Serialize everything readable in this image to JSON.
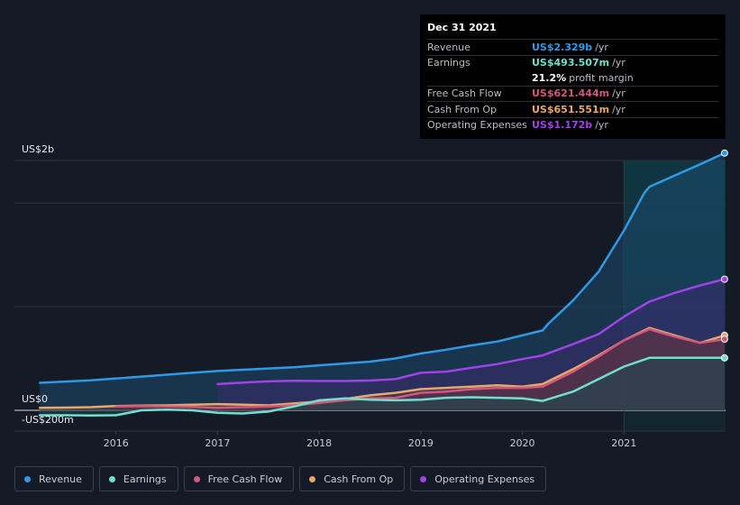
{
  "chart_data": {
    "type": "area",
    "y_axis": {
      "top_label": "US$2b",
      "zero_label": "US$0",
      "bottom_label": "-US$200m",
      "ylim": [
        -200,
        2000
      ]
    },
    "x_ticks": [
      {
        "label": "2016",
        "x": 2016.0
      },
      {
        "label": "2017",
        "x": 2017.0
      },
      {
        "label": "2018",
        "x": 2018.0
      },
      {
        "label": "2019",
        "x": 2019.0
      },
      {
        "label": "2020",
        "x": 2020.0
      },
      {
        "label": "2021",
        "x": 2021.0
      }
    ],
    "xlim": [
      2015.0,
      2022.0
    ],
    "highlight_from": 2021.0,
    "legend_position": "bottom-left",
    "series": [
      {
        "name": "Revenue",
        "color": "#2e9ae6",
        "fill": "#1b4a6e",
        "points": [
          [
            2015.25,
            220
          ],
          [
            2015.5,
            230
          ],
          [
            2015.75,
            240
          ],
          [
            2016,
            255
          ],
          [
            2016.25,
            270
          ],
          [
            2016.5,
            285
          ],
          [
            2016.75,
            300
          ],
          [
            2017,
            315
          ],
          [
            2017.25,
            325
          ],
          [
            2017.5,
            335
          ],
          [
            2017.75,
            345
          ],
          [
            2018,
            360
          ],
          [
            2018.25,
            375
          ],
          [
            2018.5,
            390
          ],
          [
            2018.75,
            415
          ],
          [
            2019,
            455
          ],
          [
            2019.25,
            485
          ],
          [
            2019.5,
            520
          ],
          [
            2019.75,
            550
          ],
          [
            2020,
            600
          ],
          [
            2020.2,
            640
          ],
          [
            2020.25,
            690
          ],
          [
            2020.5,
            880
          ],
          [
            2020.75,
            1110
          ],
          [
            2021,
            1440
          ],
          [
            2021.2,
            1740
          ],
          [
            2021.25,
            1790
          ],
          [
            2021.5,
            1880
          ],
          [
            2021.75,
            1970
          ],
          [
            2021.99,
            2060
          ]
        ]
      },
      {
        "name": "Operating Expenses",
        "color": "#a042e8",
        "fill": "#3a2a6e",
        "points": [
          [
            2017,
            210
          ],
          [
            2017.25,
            222
          ],
          [
            2017.5,
            232
          ],
          [
            2017.75,
            236
          ],
          [
            2018,
            235
          ],
          [
            2018.25,
            235
          ],
          [
            2018.5,
            238
          ],
          [
            2018.75,
            250
          ],
          [
            2019,
            300
          ],
          [
            2019.25,
            310
          ],
          [
            2019.5,
            340
          ],
          [
            2019.75,
            370
          ],
          [
            2020,
            410
          ],
          [
            2020.2,
            440
          ],
          [
            2020.5,
            530
          ],
          [
            2020.75,
            610
          ],
          [
            2021,
            750
          ],
          [
            2021.25,
            870
          ],
          [
            2021.5,
            940
          ],
          [
            2021.75,
            1000
          ],
          [
            2021.99,
            1050
          ]
        ]
      },
      {
        "name": "Cash From Op",
        "color": "#e8a968",
        "fill": "#5a3e4a",
        "points": [
          [
            2015.25,
            20
          ],
          [
            2015.5,
            22
          ],
          [
            2015.75,
            25
          ],
          [
            2016,
            35
          ],
          [
            2016.25,
            38
          ],
          [
            2016.5,
            40
          ],
          [
            2016.75,
            45
          ],
          [
            2017,
            50
          ],
          [
            2017.25,
            45
          ],
          [
            2017.5,
            40
          ],
          [
            2017.75,
            55
          ],
          [
            2018,
            70
          ],
          [
            2018.25,
            90
          ],
          [
            2018.5,
            120
          ],
          [
            2018.75,
            140
          ],
          [
            2019,
            170
          ],
          [
            2019.25,
            180
          ],
          [
            2019.5,
            190
          ],
          [
            2019.75,
            200
          ],
          [
            2020,
            190
          ],
          [
            2020.2,
            210
          ],
          [
            2020.5,
            330
          ],
          [
            2020.75,
            440
          ],
          [
            2021,
            560
          ],
          [
            2021.25,
            660
          ],
          [
            2021.5,
            600
          ],
          [
            2021.75,
            540
          ],
          [
            2021.99,
            600
          ]
        ]
      },
      {
        "name": "Free Cash Flow",
        "color": "#d2577e",
        "fill": "#5a2e46",
        "points": [
          [
            2016,
            30
          ],
          [
            2016.25,
            33
          ],
          [
            2016.5,
            30
          ],
          [
            2016.75,
            28
          ],
          [
            2017,
            20
          ],
          [
            2017.25,
            25
          ],
          [
            2017.5,
            30
          ],
          [
            2017.75,
            40
          ],
          [
            2018,
            60
          ],
          [
            2018.25,
            80
          ],
          [
            2018.5,
            95
          ],
          [
            2018.75,
            100
          ],
          [
            2019,
            140
          ],
          [
            2019.25,
            150
          ],
          [
            2019.5,
            170
          ],
          [
            2019.75,
            180
          ],
          [
            2020,
            180
          ],
          [
            2020.2,
            190
          ],
          [
            2020.5,
            310
          ],
          [
            2020.75,
            430
          ],
          [
            2021,
            560
          ],
          [
            2021.25,
            650
          ],
          [
            2021.5,
            590
          ],
          [
            2021.75,
            540
          ],
          [
            2021.99,
            570
          ]
        ]
      },
      {
        "name": "Earnings",
        "color": "#6fe0cf",
        "fill": "#1d4a4e",
        "points": [
          [
            2015.25,
            -40
          ],
          [
            2015.5,
            -40
          ],
          [
            2015.75,
            -42
          ],
          [
            2016,
            -40
          ],
          [
            2016.25,
            0
          ],
          [
            2016.5,
            5
          ],
          [
            2016.75,
            0
          ],
          [
            2017,
            -20
          ],
          [
            2017.25,
            -25
          ],
          [
            2017.5,
            -10
          ],
          [
            2017.75,
            30
          ],
          [
            2018,
            80
          ],
          [
            2018.25,
            95
          ],
          [
            2018.5,
            85
          ],
          [
            2018.75,
            80
          ],
          [
            2019,
            85
          ],
          [
            2019.25,
            100
          ],
          [
            2019.5,
            105
          ],
          [
            2019.75,
            100
          ],
          [
            2020,
            95
          ],
          [
            2020.2,
            75
          ],
          [
            2020.5,
            150
          ],
          [
            2020.75,
            250
          ],
          [
            2021,
            350
          ],
          [
            2021.25,
            420
          ],
          [
            2021.5,
            420
          ],
          [
            2021.75,
            420
          ],
          [
            2021.99,
            420
          ]
        ]
      }
    ]
  },
  "tooltip": {
    "date": "Dec 31 2021",
    "rows": [
      {
        "label": "Revenue",
        "value": "US$2.329b",
        "unit": "/yr",
        "color": "#2e9ae6"
      },
      {
        "label": "Earnings",
        "value": "US$493.507m",
        "unit": "/yr",
        "color": "#6fe0cf"
      },
      {
        "label": "",
        "value": "21.2%",
        "unit": "profit margin",
        "color": "#ffffff"
      },
      {
        "label": "Free Cash Flow",
        "value": "US$621.444m",
        "unit": "/yr",
        "color": "#d2577e"
      },
      {
        "label": "Cash From Op",
        "value": "US$651.551m",
        "unit": "/yr",
        "color": "#e8a968"
      },
      {
        "label": "Operating Expenses",
        "value": "US$1.172b",
        "unit": "/yr",
        "color": "#a042e8"
      }
    ]
  },
  "legend": [
    {
      "label": "Revenue",
      "color": "#2e9ae6"
    },
    {
      "label": "Earnings",
      "color": "#6fe0cf"
    },
    {
      "label": "Free Cash Flow",
      "color": "#d2577e"
    },
    {
      "label": "Cash From Op",
      "color": "#e8a968"
    },
    {
      "label": "Operating Expenses",
      "color": "#a042e8"
    }
  ]
}
